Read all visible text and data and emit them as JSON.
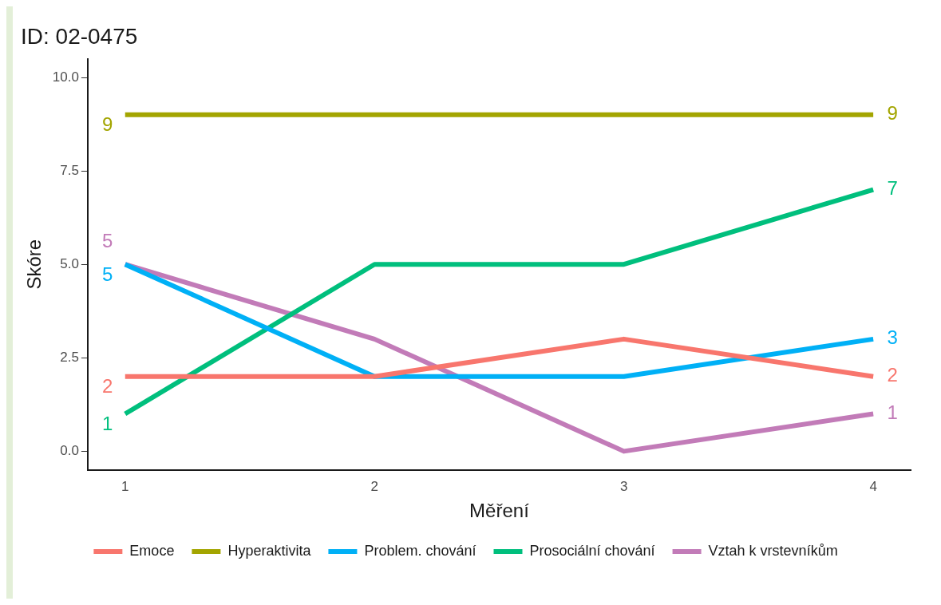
{
  "chart_data": {
    "type": "line",
    "title": "ID: 02-0475",
    "xlabel": "Měření",
    "ylabel": "Skóre",
    "x": [
      1,
      2,
      3,
      4
    ],
    "xlim": [
      0.85,
      4.15
    ],
    "xticks": [
      1,
      2,
      3,
      4
    ],
    "ylim": [
      -0.5,
      10.5
    ],
    "yticks": [
      {
        "value": 0,
        "label": "0.0"
      },
      {
        "value": 2.5,
        "label": "2.5"
      },
      {
        "value": 5,
        "label": "5.0"
      },
      {
        "value": 7.5,
        "label": "7.5"
      },
      {
        "value": 10,
        "label": "10.0"
      }
    ],
    "grid": false,
    "legend": "bottom",
    "marker": "none",
    "line_style": "solid",
    "series": [
      {
        "name": "Emoce",
        "color": "#f8766d",
        "values": [
          2,
          2,
          3,
          2
        ],
        "value_labels": [
          "2",
          null,
          null,
          "2"
        ]
      },
      {
        "name": "Hyperaktivita",
        "color": "#a3a500",
        "values": [
          9,
          9,
          9,
          9
        ],
        "value_labels": [
          "9",
          null,
          null,
          "9"
        ]
      },
      {
        "name": "Problem. chování",
        "color": "#00b0f6",
        "values": [
          5,
          2,
          2,
          3
        ],
        "value_labels": [
          "5",
          null,
          null,
          "3"
        ]
      },
      {
        "name": "Prosociální chování",
        "color": "#00bf7d",
        "values": [
          1,
          5,
          5,
          7
        ],
        "value_labels": [
          "1",
          null,
          null,
          "7"
        ]
      },
      {
        "name": "Vztah k vrstevníkům",
        "color": "#c27bb8",
        "values": [
          5,
          3,
          0,
          1
        ],
        "value_labels": [
          "5",
          null,
          null,
          "1"
        ]
      }
    ]
  }
}
